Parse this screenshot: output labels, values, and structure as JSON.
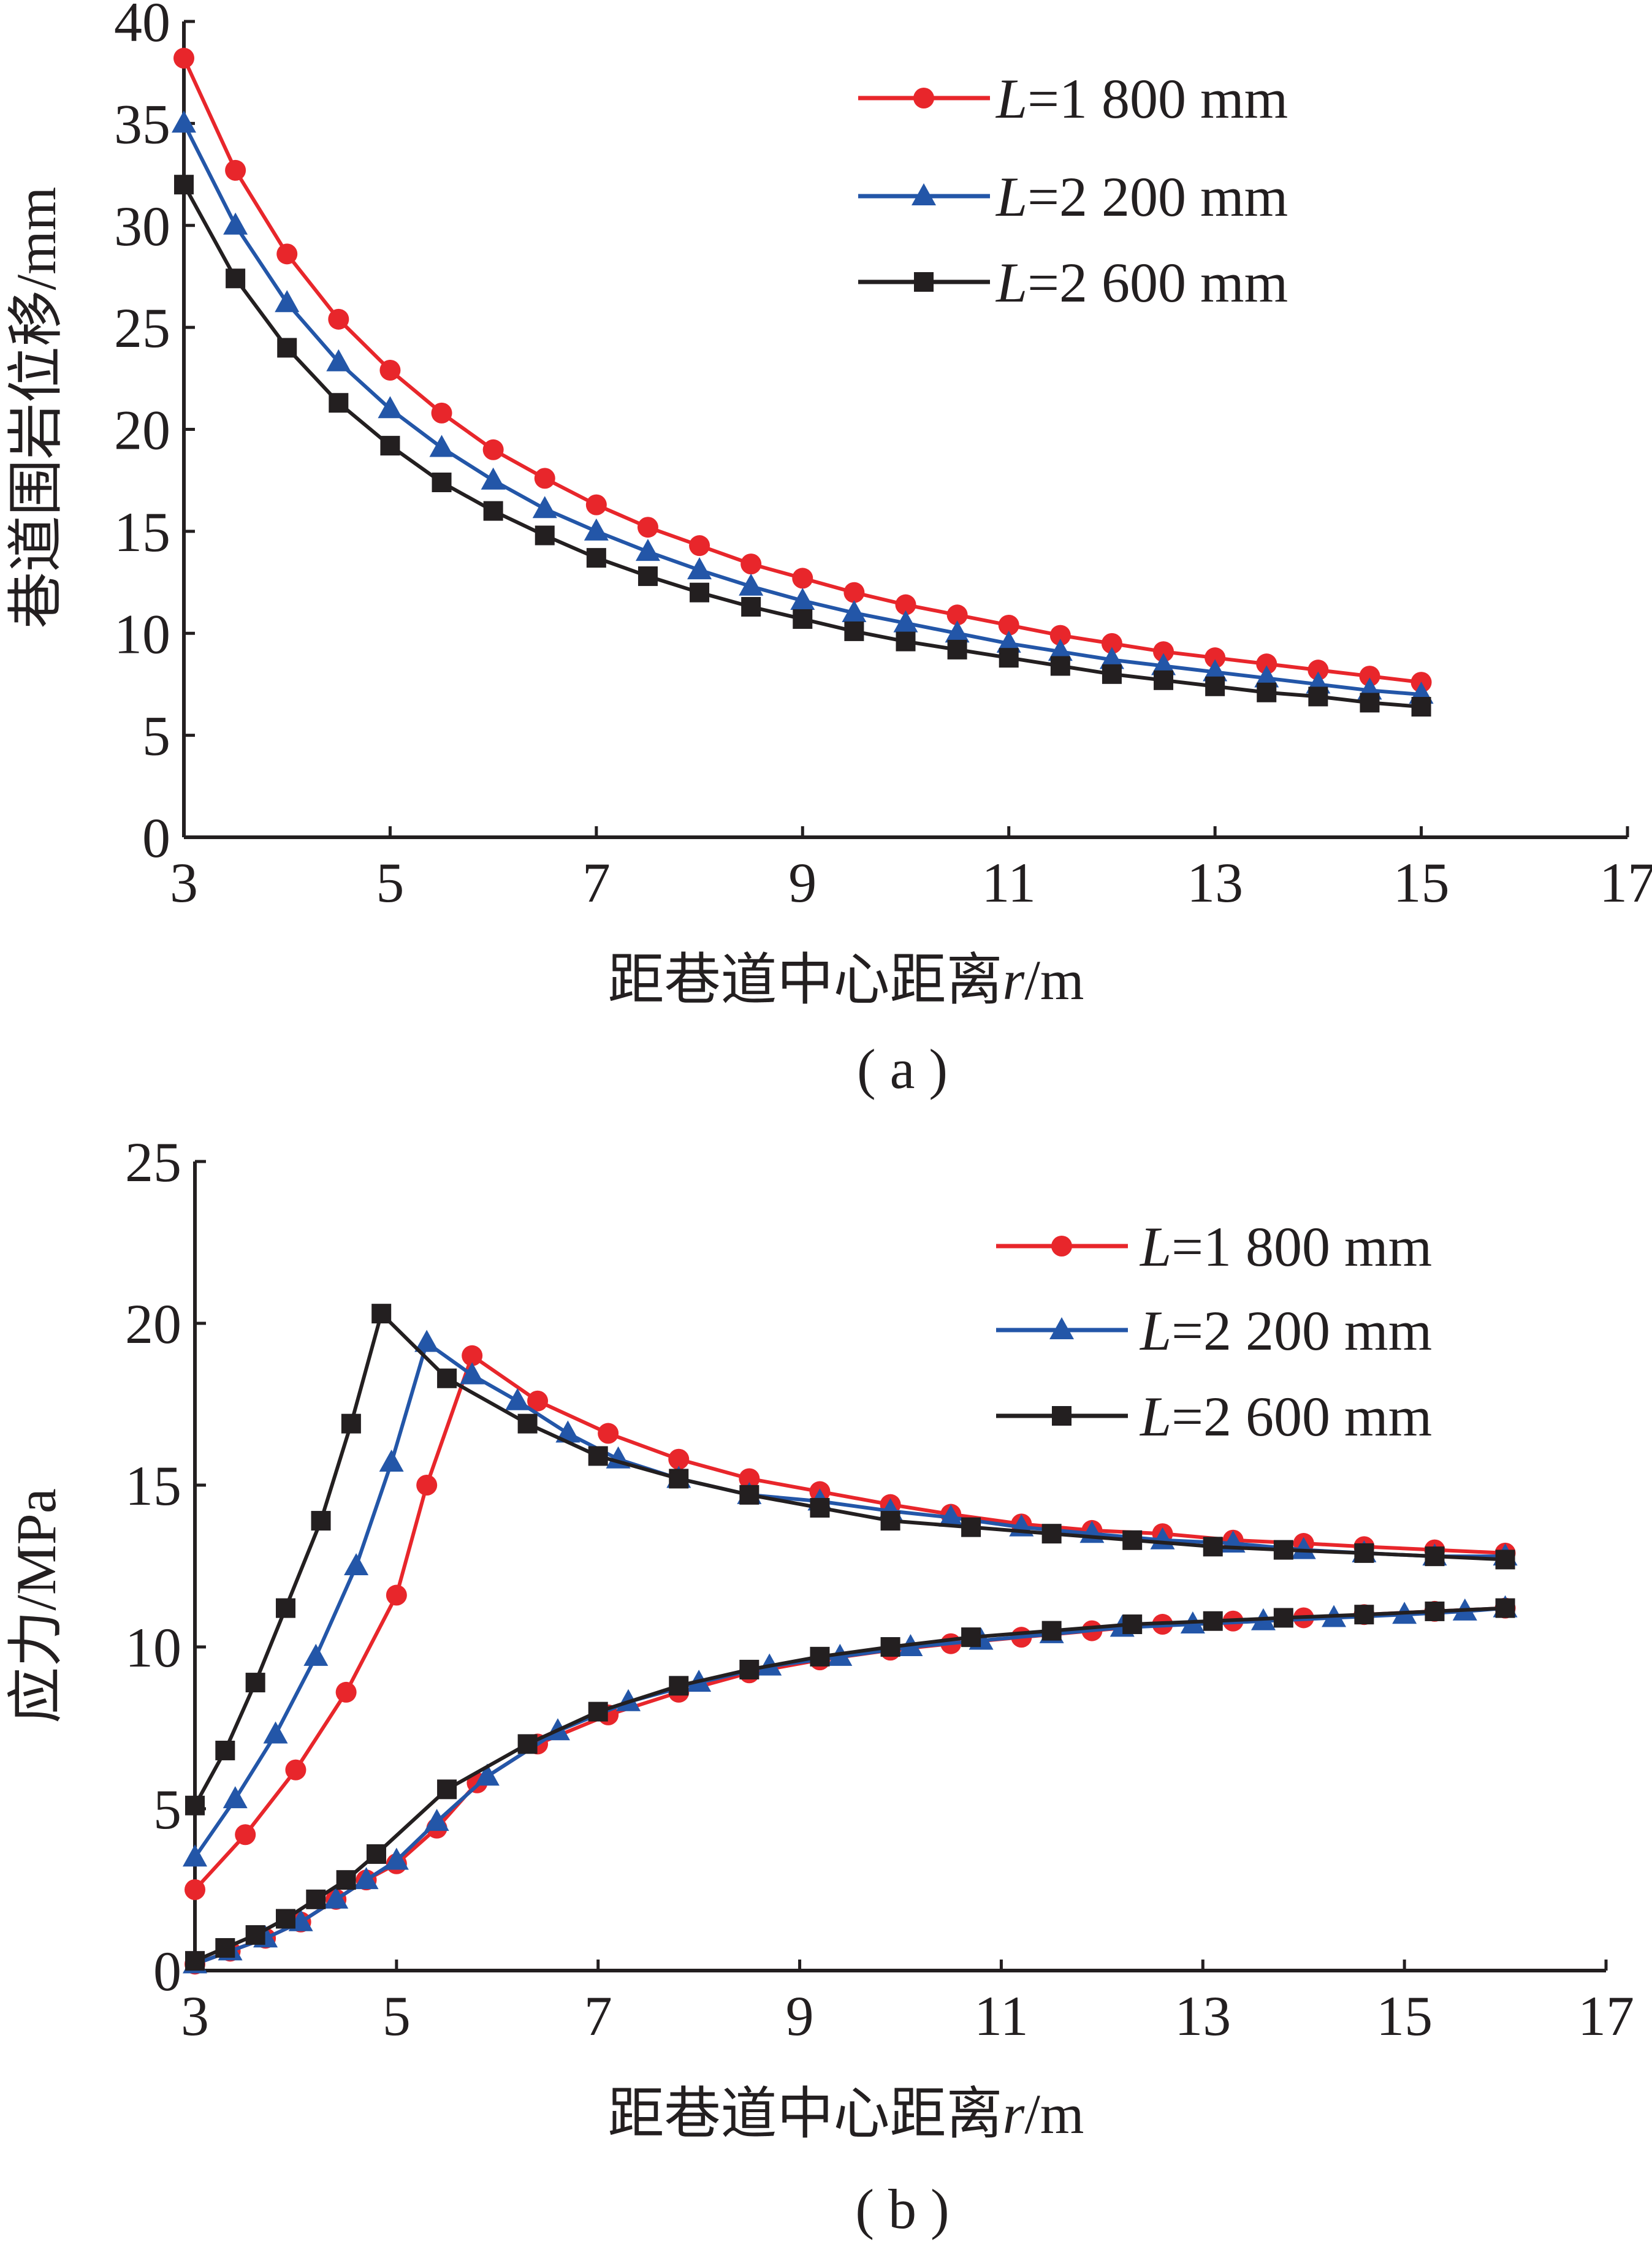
{
  "colors": {
    "L1800": "#e8262b",
    "L2200": "#2356a8",
    "L2600": "#231f20",
    "axis": "#231f20"
  },
  "chart_data": [
    {
      "type": "line",
      "panel_label": "( a )",
      "xlabel_text": "距巷道中心距离",
      "xlabel_var": "r",
      "xlabel_unit": "/m",
      "ylabel": "巷道围岩位移/mm",
      "xlim": [
        3,
        17
      ],
      "ylim": [
        0,
        40
      ],
      "xticks": [
        3,
        5,
        7,
        9,
        11,
        13,
        15,
        17
      ],
      "yticks": [
        0,
        5,
        10,
        15,
        20,
        25,
        30,
        35,
        40
      ],
      "grid": false,
      "legend_position": "top-right",
      "series": [
        {
          "name": "L=1 800 mm",
          "name_var": "L",
          "name_rest": "=1 800 mm",
          "color": "#e8262b",
          "marker": "circle",
          "x": [
            3,
            3.5,
            4,
            4.5,
            5,
            5.5,
            6,
            6.5,
            7,
            7.5,
            8,
            8.5,
            9,
            9.5,
            10,
            10.5,
            11,
            11.5,
            12,
            12.5,
            13,
            13.5,
            14,
            14.5,
            15
          ],
          "y": [
            38.2,
            32.7,
            28.6,
            25.4,
            22.9,
            20.8,
            19.0,
            17.6,
            16.3,
            15.2,
            14.3,
            13.4,
            12.7,
            12.0,
            11.4,
            10.9,
            10.4,
            9.9,
            9.5,
            9.1,
            8.8,
            8.5,
            8.2,
            7.9,
            7.6
          ]
        },
        {
          "name": "L=2 200 mm",
          "name_var": "L",
          "name_rest": "=2 200 mm",
          "color": "#2356a8",
          "marker": "triangle",
          "x": [
            3,
            3.5,
            4,
            4.5,
            5,
            5.5,
            6,
            6.5,
            7,
            7.5,
            8,
            8.5,
            9,
            9.5,
            10,
            10.5,
            11,
            11.5,
            12,
            12.5,
            13,
            13.5,
            14,
            14.5,
            15
          ],
          "y": [
            35.0,
            30.0,
            26.2,
            23.3,
            21.0,
            19.1,
            17.5,
            16.1,
            15.0,
            14.0,
            13.1,
            12.3,
            11.6,
            11.0,
            10.5,
            10.0,
            9.5,
            9.1,
            8.7,
            8.4,
            8.1,
            7.8,
            7.5,
            7.2,
            7.0
          ]
        },
        {
          "name": "L=2 600 mm",
          "name_var": "L",
          "name_rest": "=2 600 mm",
          "color": "#231f20",
          "marker": "square",
          "x": [
            3,
            3.5,
            4,
            4.5,
            5,
            5.5,
            6,
            6.5,
            7,
            7.5,
            8,
            8.5,
            9,
            9.5,
            10,
            10.5,
            11,
            11.5,
            12,
            12.5,
            13,
            13.5,
            14,
            14.5,
            15
          ],
          "y": [
            32.0,
            27.4,
            24.0,
            21.3,
            19.2,
            17.4,
            16.0,
            14.8,
            13.7,
            12.8,
            12.0,
            11.3,
            10.7,
            10.1,
            9.6,
            9.2,
            8.8,
            8.4,
            8.0,
            7.7,
            7.4,
            7.1,
            6.9,
            6.6,
            6.4
          ]
        }
      ]
    },
    {
      "type": "line",
      "panel_label": "( b )",
      "xlabel_text": "距巷道中心距离",
      "xlabel_var": "r",
      "xlabel_unit": "/m",
      "ylabel": "应力/MPa",
      "xlim": [
        3,
        17
      ],
      "ylim": [
        0,
        25
      ],
      "xticks": [
        3,
        5,
        7,
        9,
        11,
        13,
        15,
        17
      ],
      "yticks": [
        0,
        5,
        10,
        15,
        20,
        25
      ],
      "grid": false,
      "legend_position": "top-right",
      "series": [
        {
          "name": "L=1 800 mm",
          "name_var": "L",
          "name_rest": "=1 800 mm",
          "color": "#e8262b",
          "marker": "circle",
          "legend": true,
          "x": [
            3,
            3.5,
            4,
            4.5,
            5,
            5.3,
            5.75,
            6.4,
            7.1,
            7.8,
            8.5,
            9.2,
            9.9,
            10.5,
            11.2,
            11.9,
            12.6,
            13.3,
            14.0,
            14.6,
            15.3,
            16.0
          ],
          "y": [
            2.5,
            4.2,
            6.2,
            8.6,
            11.6,
            15.0,
            19.0,
            17.6,
            16.6,
            15.8,
            15.2,
            14.8,
            14.4,
            14.1,
            13.8,
            13.6,
            13.5,
            13.3,
            13.2,
            13.1,
            13.0,
            12.9
          ]
        },
        {
          "name": "L=2 200 mm",
          "color": "#2356a8",
          "marker": "triangle",
          "legend": true,
          "x": [
            3,
            3.4,
            3.8,
            4.2,
            4.6,
            4.95,
            5.3,
            5.75,
            6.2,
            6.7,
            7.2,
            7.8,
            8.5,
            9.2,
            9.9,
            10.5,
            11.2,
            11.9,
            12.6,
            13.3,
            14.0,
            14.6,
            15.3,
            16.0
          ],
          "y": [
            3.5,
            5.3,
            7.3,
            9.7,
            12.5,
            15.7,
            19.4,
            18.4,
            17.6,
            16.6,
            15.8,
            15.2,
            14.7,
            14.5,
            14.2,
            14.0,
            13.7,
            13.5,
            13.3,
            13.2,
            13.0,
            12.9,
            12.8,
            12.8
          ]
        },
        {
          "name": "L=2 600 mm",
          "color": "#231f20",
          "marker": "square",
          "legend": true,
          "x": [
            3,
            3.3,
            3.6,
            3.9,
            4.25,
            4.55,
            4.85,
            5.5,
            6.3,
            7.0,
            7.8,
            8.5,
            9.2,
            9.9,
            10.7,
            11.5,
            12.3,
            13.1,
            13.8,
            14.6,
            15.3,
            16.0
          ],
          "y": [
            5.1,
            6.8,
            8.9,
            11.2,
            13.9,
            16.9,
            20.3,
            18.3,
            16.9,
            15.9,
            15.2,
            14.7,
            14.3,
            13.9,
            13.7,
            13.5,
            13.3,
            13.1,
            13.0,
            12.9,
            12.8,
            12.7
          ]
        },
        {
          "name": "",
          "color": "#e8262b",
          "marker": "circle",
          "legend": false,
          "x": [
            3,
            3.35,
            3.7,
            4.05,
            4.4,
            4.7,
            5.0,
            5.4,
            5.8,
            6.4,
            7.1,
            7.8,
            8.5,
            9.2,
            9.9,
            10.5,
            11.2,
            11.9,
            12.6,
            13.3,
            14.0,
            14.6,
            15.3,
            16.0
          ],
          "y": [
            0.2,
            0.6,
            1.0,
            1.5,
            2.2,
            2.8,
            3.3,
            4.4,
            5.8,
            7.0,
            7.9,
            8.6,
            9.2,
            9.6,
            9.9,
            10.1,
            10.3,
            10.5,
            10.7,
            10.8,
            10.9,
            11.0,
            11.1,
            11.2
          ]
        },
        {
          "name": "",
          "color": "#2356a8",
          "marker": "triangle",
          "legend": true,
          "x": [
            3,
            3.35,
            3.7,
            4.05,
            4.4,
            4.7,
            5.0,
            5.4,
            5.9,
            6.6,
            7.3,
            8.0,
            8.7,
            9.4,
            10.1,
            10.8,
            11.5,
            12.2,
            12.9,
            13.6,
            14.3,
            15.0,
            15.6,
            16.0
          ],
          "y": [
            0.2,
            0.6,
            1.0,
            1.5,
            2.2,
            2.8,
            3.4,
            4.6,
            6.0,
            7.4,
            8.3,
            8.9,
            9.4,
            9.7,
            10.0,
            10.2,
            10.4,
            10.6,
            10.7,
            10.8,
            10.9,
            11.0,
            11.1,
            11.2
          ]
        },
        {
          "name": "",
          "color": "#231f20",
          "marker": "square",
          "legend": true,
          "x": [
            3,
            3.3,
            3.6,
            3.9,
            4.2,
            4.5,
            4.8,
            5.5,
            6.3,
            7.0,
            7.8,
            8.5,
            9.2,
            9.9,
            10.7,
            11.5,
            12.3,
            13.1,
            13.8,
            14.6,
            15.3,
            16.0
          ],
          "y": [
            0.3,
            0.7,
            1.1,
            1.6,
            2.2,
            2.8,
            3.6,
            5.6,
            7.0,
            8.0,
            8.8,
            9.3,
            9.7,
            10.0,
            10.3,
            10.5,
            10.7,
            10.8,
            10.9,
            11.0,
            11.1,
            11.2
          ]
        }
      ]
    }
  ]
}
